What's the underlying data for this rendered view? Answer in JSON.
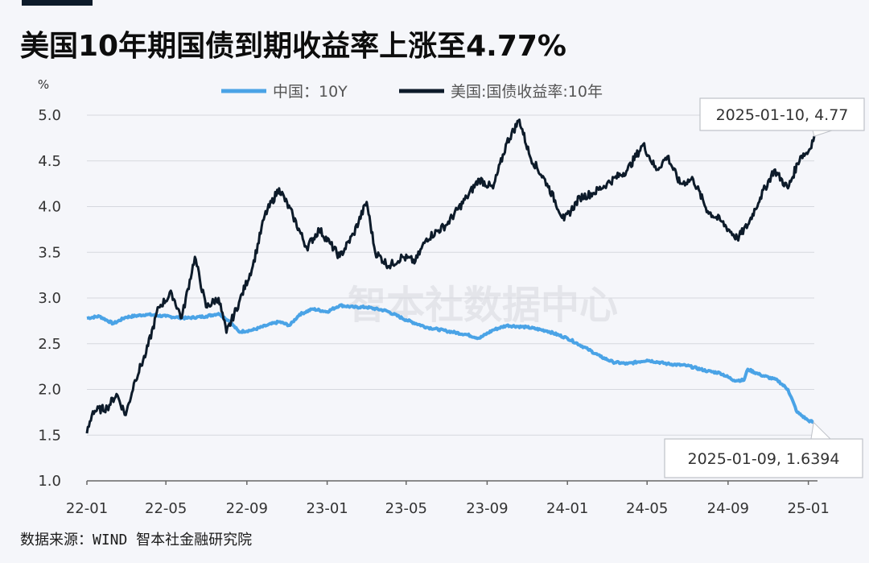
{
  "title": "美国10年期国债到期收益率上涨至4.77%",
  "source": "数据来源：WIND 智本社金融研究院",
  "watermark": "智本社数据中心",
  "colors": {
    "china": "#4aa3e6",
    "us": "#0d1b2a",
    "grid": "#d6d8de",
    "background": "#f5f6fa"
  },
  "chart_data": {
    "type": "line",
    "title": "美国10年期国债到期收益率上涨至4.77%",
    "ylabel": "%",
    "ylim": [
      1.0,
      5.0
    ],
    "yticks": [
      "1.0",
      "1.5",
      "2.0",
      "2.5",
      "3.0",
      "3.5",
      "4.0",
      "4.5",
      "5.0"
    ],
    "xticks": [
      "22-01",
      "22-05",
      "22-09",
      "23-01",
      "23-05",
      "23-09",
      "24-01",
      "24-05",
      "24-09",
      "25-01"
    ],
    "xrange": [
      "2022-01-01",
      "2025-01-10"
    ],
    "grid": true,
    "legend_position": "top",
    "series": [
      {
        "name": "中国：10Y",
        "color": "#4aa3e6",
        "points": [
          [
            "2022-01-01",
            2.78
          ],
          [
            "2022-01-20",
            2.8
          ],
          [
            "2022-02-10",
            2.72
          ],
          [
            "2022-03-01",
            2.79
          ],
          [
            "2022-04-01",
            2.82
          ],
          [
            "2022-05-01",
            2.8
          ],
          [
            "2022-06-01",
            2.78
          ],
          [
            "2022-07-01",
            2.8
          ],
          [
            "2022-07-20",
            2.83
          ],
          [
            "2022-08-05",
            2.75
          ],
          [
            "2022-08-20",
            2.63
          ],
          [
            "2022-09-10",
            2.65
          ],
          [
            "2022-10-01",
            2.7
          ],
          [
            "2022-10-20",
            2.74
          ],
          [
            "2022-11-05",
            2.7
          ],
          [
            "2022-11-20",
            2.82
          ],
          [
            "2022-12-10",
            2.88
          ],
          [
            "2023-01-01",
            2.85
          ],
          [
            "2023-01-20",
            2.92
          ],
          [
            "2023-02-10",
            2.9
          ],
          [
            "2023-03-01",
            2.9
          ],
          [
            "2023-04-01",
            2.86
          ],
          [
            "2023-05-01",
            2.76
          ],
          [
            "2023-06-01",
            2.68
          ],
          [
            "2023-07-01",
            2.64
          ],
          [
            "2023-08-01",
            2.6
          ],
          [
            "2023-08-20",
            2.56
          ],
          [
            "2023-09-10",
            2.65
          ],
          [
            "2023-10-01",
            2.7
          ],
          [
            "2023-11-01",
            2.68
          ],
          [
            "2023-12-01",
            2.64
          ],
          [
            "2024-01-01",
            2.56
          ],
          [
            "2024-02-01",
            2.44
          ],
          [
            "2024-02-20",
            2.36
          ],
          [
            "2024-03-10",
            2.3
          ],
          [
            "2024-04-01",
            2.28
          ],
          [
            "2024-05-01",
            2.32
          ],
          [
            "2024-06-01",
            2.28
          ],
          [
            "2024-07-01",
            2.26
          ],
          [
            "2024-08-01",
            2.2
          ],
          [
            "2024-08-20",
            2.18
          ],
          [
            "2024-09-10",
            2.1
          ],
          [
            "2024-09-25",
            2.1
          ],
          [
            "2024-10-01",
            2.22
          ],
          [
            "2024-10-20",
            2.16
          ],
          [
            "2024-11-15",
            2.1
          ],
          [
            "2024-12-01",
            2.0
          ],
          [
            "2024-12-15",
            1.75
          ],
          [
            "2025-01-01",
            1.66
          ],
          [
            "2025-01-09",
            1.6394
          ]
        ]
      },
      {
        "name": "美国:国债收益率:10年",
        "color": "#0d1b2a",
        "points": [
          [
            "2022-01-01",
            1.52
          ],
          [
            "2022-01-10",
            1.76
          ],
          [
            "2022-02-01",
            1.8
          ],
          [
            "2022-02-15",
            1.95
          ],
          [
            "2022-03-01",
            1.72
          ],
          [
            "2022-03-15",
            2.1
          ],
          [
            "2022-04-01",
            2.4
          ],
          [
            "2022-04-20",
            2.9
          ],
          [
            "2022-05-10",
            3.05
          ],
          [
            "2022-05-25",
            2.78
          ],
          [
            "2022-06-14",
            3.45
          ],
          [
            "2022-07-01",
            2.9
          ],
          [
            "2022-07-20",
            3.0
          ],
          [
            "2022-08-01",
            2.62
          ],
          [
            "2022-08-20",
            2.95
          ],
          [
            "2022-09-10",
            3.35
          ],
          [
            "2022-09-28",
            3.9
          ],
          [
            "2022-10-20",
            4.2
          ],
          [
            "2022-11-10",
            3.9
          ],
          [
            "2022-12-01",
            3.55
          ],
          [
            "2022-12-20",
            3.75
          ],
          [
            "2023-01-05",
            3.6
          ],
          [
            "2023-01-20",
            3.45
          ],
          [
            "2023-02-10",
            3.7
          ],
          [
            "2023-03-02",
            4.05
          ],
          [
            "2023-03-15",
            3.5
          ],
          [
            "2023-04-05",
            3.35
          ],
          [
            "2023-04-25",
            3.45
          ],
          [
            "2023-05-15",
            3.4
          ],
          [
            "2023-06-01",
            3.65
          ],
          [
            "2023-07-01",
            3.8
          ],
          [
            "2023-08-01",
            4.1
          ],
          [
            "2023-08-20",
            4.3
          ],
          [
            "2023-09-10",
            4.2
          ],
          [
            "2023-10-01",
            4.7
          ],
          [
            "2023-10-20",
            4.95
          ],
          [
            "2023-11-05",
            4.55
          ],
          [
            "2023-12-01",
            4.25
          ],
          [
            "2023-12-27",
            3.85
          ],
          [
            "2024-01-20",
            4.1
          ],
          [
            "2024-02-10",
            4.15
          ],
          [
            "2024-03-01",
            4.25
          ],
          [
            "2024-04-01",
            4.4
          ],
          [
            "2024-04-25",
            4.68
          ],
          [
            "2024-05-15",
            4.4
          ],
          [
            "2024-06-01",
            4.55
          ],
          [
            "2024-06-20",
            4.25
          ],
          [
            "2024-07-10",
            4.3
          ],
          [
            "2024-08-01",
            3.95
          ],
          [
            "2024-08-20",
            3.85
          ],
          [
            "2024-09-15",
            3.65
          ],
          [
            "2024-10-01",
            3.8
          ],
          [
            "2024-10-20",
            4.1
          ],
          [
            "2024-11-10",
            4.4
          ],
          [
            "2024-12-01",
            4.2
          ],
          [
            "2024-12-20",
            4.55
          ],
          [
            "2025-01-01",
            4.6
          ],
          [
            "2025-01-10",
            4.77
          ]
        ]
      }
    ],
    "annotations": [
      {
        "text": "2025-01-10, 4.77",
        "x": "2025-01-10",
        "y": 4.77,
        "series": "美国:国债收益率:10年"
      },
      {
        "text": "2025-01-09, 1.6394",
        "x": "2025-01-09",
        "y": 1.6394,
        "series": "中国：10Y"
      }
    ]
  }
}
